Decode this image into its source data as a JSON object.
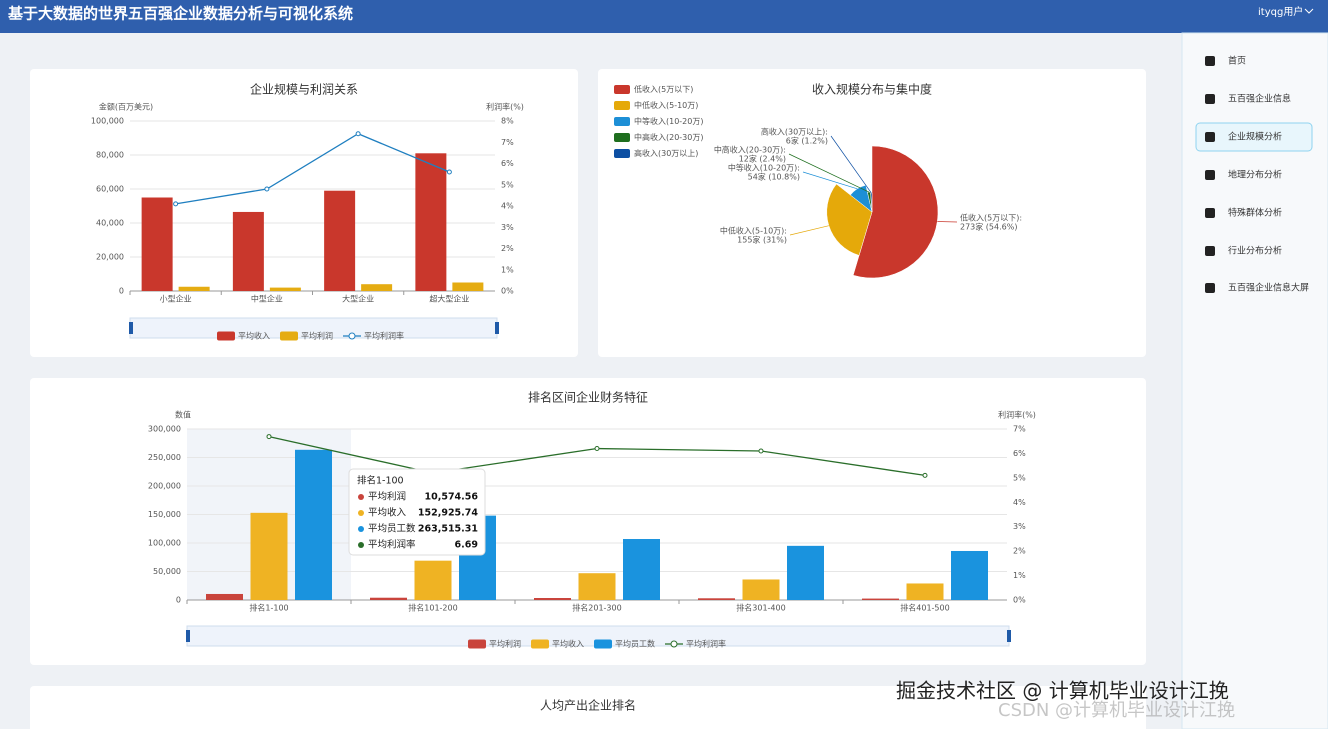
{
  "header": {
    "title": "基于大数据的世界五百强企业数据分析与可视化系统",
    "user": "ityqg用户"
  },
  "sidebar": {
    "items": [
      "首页",
      "五百强企业信息",
      "企业规模分析",
      "地理分布分析",
      "特殊群体分析",
      "行业分布分析",
      "五百强企业信息大屏"
    ]
  },
  "chart_data": [
    {
      "type": "bar",
      "title": "企业规模与利润关系",
      "y_label": "金额(百万美元)",
      "y2_label": "利润率(%)",
      "categories": [
        "小型企业",
        "中型企业",
        "大型企业",
        "超大型企业"
      ],
      "series": [
        {
          "name": "平均收入",
          "color": "#c9372c",
          "values": [
            55000,
            46500,
            59000,
            81000
          ]
        },
        {
          "name": "平均利润",
          "color": "#e5ac12",
          "values": [
            2500,
            2000,
            4000,
            5000
          ]
        },
        {
          "name": "平均利润率",
          "color": "#1f7fc0",
          "type": "line",
          "axis": "y2",
          "values": [
            4.1,
            4.8,
            7.4,
            5.6
          ]
        }
      ],
      "ylim": [
        0,
        100000
      ],
      "yticks": [
        0,
        {
          "value": 20000,
          "label": "20,000"
        },
        {
          "value": 40000,
          "label": "40,000"
        },
        {
          "value": 60000,
          "label": "60,000"
        },
        {
          "value": 80000,
          "label": "80,000"
        },
        {
          "value": 100000,
          "label": "100,000"
        }
      ],
      "y2lim": [
        0,
        8
      ],
      "y2ticks": [
        {
          "value": 0,
          "label": "0%"
        },
        {
          "value": 1,
          "label": "1%"
        },
        {
          "value": 2,
          "label": "2%"
        },
        {
          "value": 3,
          "label": "3%"
        },
        {
          "value": 4,
          "label": "4%"
        },
        {
          "value": 5,
          "label": "5%"
        },
        {
          "value": 6,
          "label": "6%"
        },
        {
          "value": 7,
          "label": "7%"
        },
        {
          "value": 8,
          "label": "8%"
        }
      ],
      "grid": true
    },
    {
      "type": "pie",
      "title": "收入规模分布与集中度",
      "categories": [
        "低收入(5万以下)",
        "中低收入(5-10万)",
        "中等收入(10-20万)",
        "中高收入(20-30万)",
        "高收入(30万以上)"
      ],
      "slice_labels": [
        "低收入(5万以下):",
        "中低收入(5-10万):",
        "中等收入(10-20万):",
        "中高收入(20-30万):",
        "高收入(30万以上):"
      ],
      "values": [
        273,
        155,
        54,
        12,
        6
      ],
      "value_labels": [
        "273家 (54.6%)",
        "155家 (31%)",
        "54家 (10.8%)",
        "12家 (2.4%)",
        "6家 (1.2%)"
      ],
      "colors": [
        "#c9372c",
        "#e5a90a",
        "#1d8fd6",
        "#1e6e1e",
        "#0d4fa3"
      ]
    },
    {
      "type": "bar",
      "title": "排名区间企业财务特征",
      "y_label": "数值",
      "y2_label": "利润率(%)",
      "categories": [
        "排名1-100",
        "排名101-200",
        "排名201-300",
        "排名301-400",
        "排名401-500"
      ],
      "series": [
        {
          "name": "平均利润",
          "color": "#c9443c",
          "values": [
            10574.56,
            4000,
            3500,
            3000,
            2500
          ],
          "value_labels": [
            "10,574.56",
            null,
            null,
            null,
            null
          ]
        },
        {
          "name": "平均收入",
          "color": "#efb323",
          "values": [
            152925.74,
            69000,
            47000,
            36000,
            29000
          ],
          "value_labels": [
            "152,925.74",
            null,
            null,
            null,
            null
          ]
        },
        {
          "name": "平均员工数",
          "color": "#1a93de",
          "values": [
            263515.31,
            148000,
            107000,
            95000,
            86000
          ],
          "value_labels": [
            "263,515.31",
            null,
            null,
            null,
            null
          ]
        },
        {
          "name": "平均利润率",
          "color": "#2a6e2a",
          "type": "line",
          "axis": "y2",
          "values": [
            6.69,
            5.2,
            6.2,
            6.1,
            5.1
          ]
        }
      ],
      "ylim": [
        0,
        300000
      ],
      "yticks": [
        0,
        {
          "value": 50000,
          "label": "50,000"
        },
        {
          "value": 100000,
          "label": "100,000"
        },
        {
          "value": 150000,
          "label": "150,000"
        },
        {
          "value": 200000,
          "label": "200,000"
        },
        {
          "value": 250000,
          "label": "250,000"
        },
        {
          "value": 300000,
          "label": "300,000"
        }
      ],
      "y2lim": [
        0,
        7
      ],
      "y2ticks": [
        {
          "value": 0,
          "label": "0%"
        },
        {
          "value": 1,
          "label": "1%"
        },
        {
          "value": 2,
          "label": "2%"
        },
        {
          "value": 3,
          "label": "3%"
        },
        {
          "value": 4,
          "label": "4%"
        },
        {
          "value": 5,
          "label": "5%"
        },
        {
          "value": 6,
          "label": "6%"
        },
        {
          "value": 7,
          "label": "7%"
        }
      ],
      "grid": true
    }
  ],
  "bottom_panel": {
    "title": "人均产出企业排名"
  },
  "watermarks": [
    "掘金技术社区 @ 计算机毕业设计江挽",
    "CSDN @计算机毕业设计江挽"
  ]
}
